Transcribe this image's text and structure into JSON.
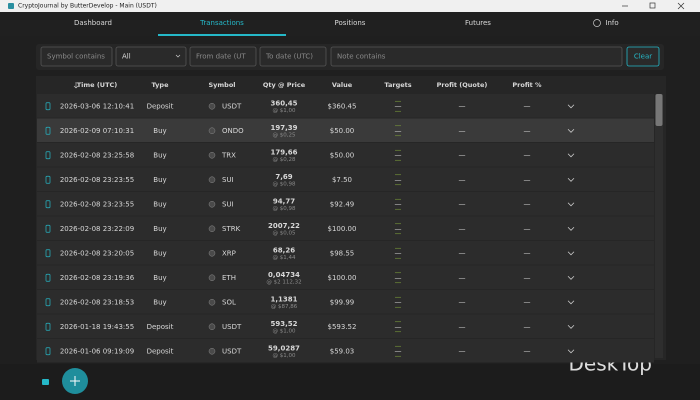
{
  "window": {
    "title": "CryptoJournal by ButterDevelop - Main (USDT)"
  },
  "tabs": [
    "Dashboard",
    "Transactions",
    "Positions",
    "Futures",
    "Info"
  ],
  "filters": {
    "symbol": "Symbol contains",
    "type": "All",
    "from": "From date (UT",
    "to": "To date (UTC)",
    "note": "Note contains",
    "clear": "Clear"
  },
  "table": {
    "columns": [
      "Time (UTC)",
      "Type",
      "Symbol",
      "Qty @ Price",
      "Value",
      "Targets",
      "Profit (Quote)",
      "Profit %"
    ],
    "rows": [
      [
        "2026-03-06 12:10:41",
        "Deposit",
        "USDT",
        "360,45",
        "@ $1,00",
        "$360.45",
        "—",
        "—",
        "—"
      ],
      [
        "2026-02-09 07:10:31",
        "Buy",
        "ONDO",
        "197,39",
        "@ $0,25",
        "$50.00",
        "—",
        "—",
        "—"
      ],
      [
        "2026-02-08 23:25:58",
        "Buy",
        "TRX",
        "179,66",
        "@ $0,28",
        "$50.00",
        "—",
        "—",
        "—"
      ],
      [
        "2026-02-08 23:23:55",
        "Buy",
        "SUI",
        "7,69",
        "@ $0,98",
        "$7.50",
        "—",
        "—",
        "—"
      ],
      [
        "2026-02-08 23:23:55",
        "Buy",
        "SUI",
        "94,77",
        "@ $0,98",
        "$92.49",
        "—",
        "—",
        "—"
      ],
      [
        "2026-02-08 23:22:09",
        "Buy",
        "STRK",
        "2007,22",
        "@ $0,05",
        "$100.00",
        "—",
        "—",
        "—"
      ],
      [
        "2026-02-08 23:20:05",
        "Buy",
        "XRP",
        "68,26",
        "@ $1,44",
        "$98.55",
        "—",
        "—",
        "—"
      ],
      [
        "2026-02-08 23:19:36",
        "Buy",
        "ETH",
        "0,04734",
        "@ $2 112,32",
        "$100.00",
        "—",
        "—",
        "—"
      ],
      [
        "2026-02-08 23:18:53",
        "Buy",
        "SOL",
        "1,1381",
        "@ $87,86",
        "$99.99",
        "—",
        "—",
        "—"
      ],
      [
        "2026-01-18 19:43:55",
        "Deposit",
        "USDT",
        "593,52",
        "@ $1,00",
        "$593.52",
        "—",
        "—",
        "—"
      ],
      [
        "2026-01-06 09:19:09",
        "Deposit",
        "USDT",
        "59,0287",
        "@ $1,00",
        "$59.03",
        "—",
        "—",
        "—"
      ]
    ]
  },
  "watermark": "DeskTop"
}
